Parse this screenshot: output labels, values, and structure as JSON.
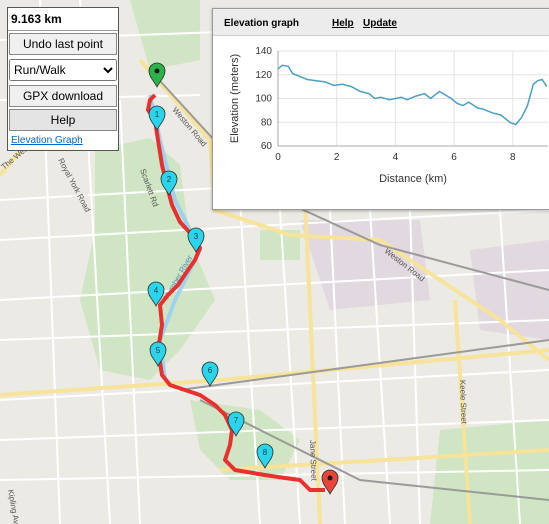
{
  "controls": {
    "distance": "9.163 km",
    "undo_label": "Undo last point",
    "mode_options": [
      "Run/Walk"
    ],
    "mode_selected": "Run/Walk",
    "gpx_label": "GPX download",
    "help_label": "Help",
    "elevation_link": "Elevation Graph"
  },
  "elevation_panel": {
    "title": "Elevation graph",
    "help_link": "Help",
    "update_link": "Update"
  },
  "chart_data": {
    "type": "line",
    "xlabel": "Distance (km)",
    "ylabel": "Elevation (meters)",
    "xlim": [
      0,
      9.2
    ],
    "ylim": [
      60,
      140
    ],
    "xticks": [
      0,
      2,
      4,
      6,
      8
    ],
    "yticks": [
      60,
      80,
      100,
      120,
      140
    ],
    "grid": true,
    "line_color": "#4a9fc2",
    "x": [
      0,
      0.15,
      0.35,
      0.5,
      0.7,
      1.0,
      1.3,
      1.6,
      1.9,
      2.2,
      2.5,
      2.8,
      3.1,
      3.3,
      3.5,
      3.8,
      4.0,
      4.2,
      4.4,
      4.7,
      5.0,
      5.2,
      5.5,
      5.7,
      5.9,
      6.1,
      6.3,
      6.5,
      6.8,
      7.0,
      7.3,
      7.6,
      7.9,
      8.1,
      8.3,
      8.5,
      8.7,
      8.85,
      9.0,
      9.16
    ],
    "y": [
      125,
      128,
      127,
      121,
      119,
      116,
      115,
      114,
      111,
      112,
      110,
      106,
      104,
      100,
      101,
      99,
      100,
      101,
      99,
      102,
      104,
      100,
      106,
      103,
      100,
      96,
      94,
      97,
      92,
      91,
      88,
      86,
      80,
      78,
      84,
      94,
      112,
      115,
      116,
      110
    ]
  },
  "map": {
    "route_color": "#e8312f",
    "waypoint_color": "#2ad4ea",
    "start_color": "#2bb24c",
    "end_color": "#e8443a",
    "waypoints": [
      "1",
      "2",
      "3",
      "4",
      "5",
      "6",
      "7",
      "8"
    ],
    "labels": [
      "Scarlett Rd",
      "Weston Road",
      "Royal York Road",
      "The Westway",
      "Kipling Ave",
      "Weston Road",
      "Keele Street",
      "Jane Street",
      "Humber River"
    ]
  }
}
